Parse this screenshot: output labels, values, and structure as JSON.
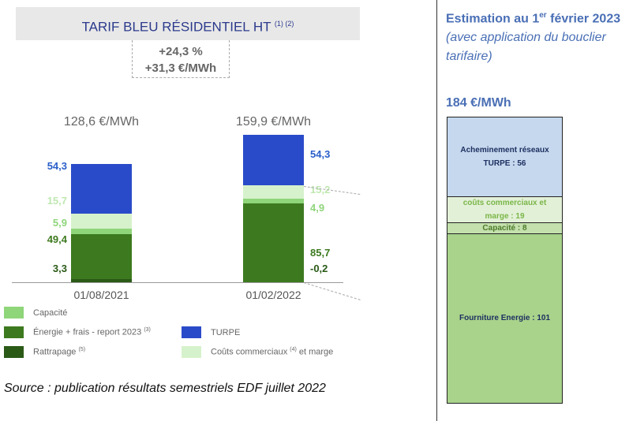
{
  "chart_data": [
    {
      "type": "bar",
      "stacked": true,
      "title": "TARIF BLEU RÉSIDENTIEL HT",
      "title_footnotes": "(1) (2)",
      "delta": {
        "percent": "+24,3 %",
        "abs": "+31,3 €/MWh"
      },
      "categories": [
        "01/08/2021",
        "01/02/2022"
      ],
      "totals": [
        "128,6 €/MWh",
        "159,9 €/MWh"
      ],
      "series": [
        {
          "name": "Rattrapage",
          "footnote": "(5)",
          "color": "#2a5a16",
          "values": [
            3.3,
            -0.2
          ],
          "labels": [
            "3,3",
            "-0,2"
          ]
        },
        {
          "name": "Énergie + frais - report 2023",
          "footnote": "(3)",
          "color": "#3d7a1f",
          "values": [
            49.4,
            85.7
          ],
          "labels": [
            "49,4",
            "85,7"
          ]
        },
        {
          "name": "Capacité",
          "footnote": "",
          "color": "#8fd57a",
          "values": [
            5.9,
            4.9
          ],
          "labels": [
            "5,9",
            "4,9"
          ]
        },
        {
          "name": "Coûts commerciaux et marge",
          "footnote": "(4)",
          "color": "#d6f2cc",
          "values": [
            15.7,
            15.2
          ],
          "labels": [
            "15,7",
            "15,2"
          ]
        },
        {
          "name": "TURPE",
          "footnote": "",
          "color": "#2a4bc9",
          "values": [
            54.3,
            54.3
          ],
          "labels": [
            "54,3",
            "54,3"
          ]
        }
      ],
      "label_colors": [
        "#2a5a16",
        "#3d7a1f",
        "#8fd57a",
        "#bfe8b0",
        "#2a5fc9"
      ],
      "source": "Source : publication résultats semestriels EDF juillet 2022"
    },
    {
      "type": "bar",
      "stacked": true,
      "title_main": "Estimation au 1",
      "title_sup": "er",
      "title_rest": " février 2023",
      "subtitle": "(avec application du bouclier tarifaire)",
      "total": "184 €/MWh",
      "segments": [
        {
          "label": "Acheminement réseaux TURPE : 56",
          "value": 56,
          "color": "#c5d8ee",
          "text_color": "#1f3060"
        },
        {
          "label": "coûts commerciaux et marge : 19",
          "value": 19,
          "color": "#e3f0d8",
          "text_color": "#7ab648"
        },
        {
          "label": "Capacité : 8",
          "value": 8,
          "color": "#c4e0ad",
          "text_color": "#4d7a2a"
        },
        {
          "label": "Fourniture Energie : 101",
          "value": 101,
          "color": "#a9d38b",
          "text_color": "#1f3060"
        }
      ]
    }
  ]
}
